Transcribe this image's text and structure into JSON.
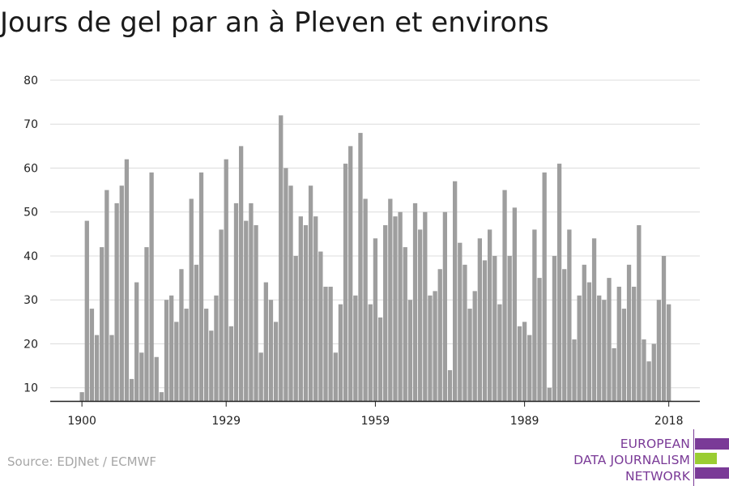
{
  "title": "Jours de gel par an à Pleven et environs",
  "source": "Source: EDJNet / ECMWF",
  "logo": {
    "lines": [
      "EUROPEAN",
      "DATA JOURNALISM",
      "NETWORK"
    ],
    "colors": [
      "#7a3a97",
      "#9acd32",
      "#7a3a97"
    ]
  },
  "chart_data": {
    "type": "bar",
    "title": "Jours de gel par an à Pleven et environs",
    "xlabel": "",
    "ylabel": "",
    "ylim": [
      7,
      80
    ],
    "yticks": [
      10,
      20,
      30,
      40,
      50,
      60,
      70,
      80
    ],
    "xtick_labels": [
      "1900",
      "1929",
      "1959",
      "1989",
      "2018"
    ],
    "grid": true,
    "bar_color": "#9e9e9e",
    "years": [
      1900,
      1901,
      1902,
      1903,
      1904,
      1905,
      1906,
      1907,
      1908,
      1909,
      1910,
      1911,
      1912,
      1913,
      1914,
      1915,
      1916,
      1917,
      1918,
      1919,
      1920,
      1921,
      1922,
      1923,
      1924,
      1925,
      1926,
      1927,
      1928,
      1929,
      1930,
      1931,
      1932,
      1933,
      1934,
      1935,
      1936,
      1937,
      1938,
      1939,
      1940,
      1941,
      1942,
      1943,
      1944,
      1945,
      1946,
      1947,
      1948,
      1949,
      1950,
      1951,
      1952,
      1953,
      1954,
      1955,
      1956,
      1957,
      1958,
      1959,
      1960,
      1961,
      1962,
      1963,
      1964,
      1965,
      1966,
      1967,
      1968,
      1969,
      1970,
      1971,
      1972,
      1973,
      1974,
      1975,
      1976,
      1977,
      1978,
      1979,
      1980,
      1981,
      1982,
      1983,
      1984,
      1985,
      1986,
      1987,
      1988,
      1989,
      1990,
      1991,
      1992,
      1993,
      1994,
      1995,
      1996,
      1997,
      1998,
      1999,
      2000,
      2001,
      2002,
      2003,
      2004,
      2005,
      2006,
      2007,
      2008,
      2009,
      2010,
      2011,
      2012,
      2013,
      2014,
      2015,
      2016,
      2017,
      2018
    ],
    "values": [
      9,
      48,
      28,
      22,
      42,
      55,
      22,
      52,
      56,
      62,
      12,
      34,
      18,
      42,
      59,
      17,
      9,
      30,
      31,
      25,
      37,
      28,
      53,
      38,
      59,
      28,
      23,
      31,
      46,
      62,
      24,
      52,
      65,
      48,
      52,
      47,
      18,
      34,
      30,
      25,
      72,
      60,
      56,
      40,
      49,
      47,
      56,
      49,
      41,
      33,
      33,
      18,
      29,
      61,
      65,
      31,
      68,
      53,
      29,
      44,
      26,
      47,
      53,
      49,
      50,
      42,
      30,
      52,
      46,
      50,
      31,
      32,
      37,
      50,
      14,
      57,
      43,
      38,
      28,
      32,
      44,
      39,
      46,
      40,
      29,
      55,
      40,
      51,
      24,
      25,
      22,
      46,
      35,
      59,
      10,
      40,
      61,
      37,
      46,
      21,
      31,
      38,
      34,
      44,
      31,
      30,
      35,
      19,
      33,
      28,
      38,
      33,
      47,
      21,
      16,
      20,
      30,
      40,
      29
    ]
  }
}
